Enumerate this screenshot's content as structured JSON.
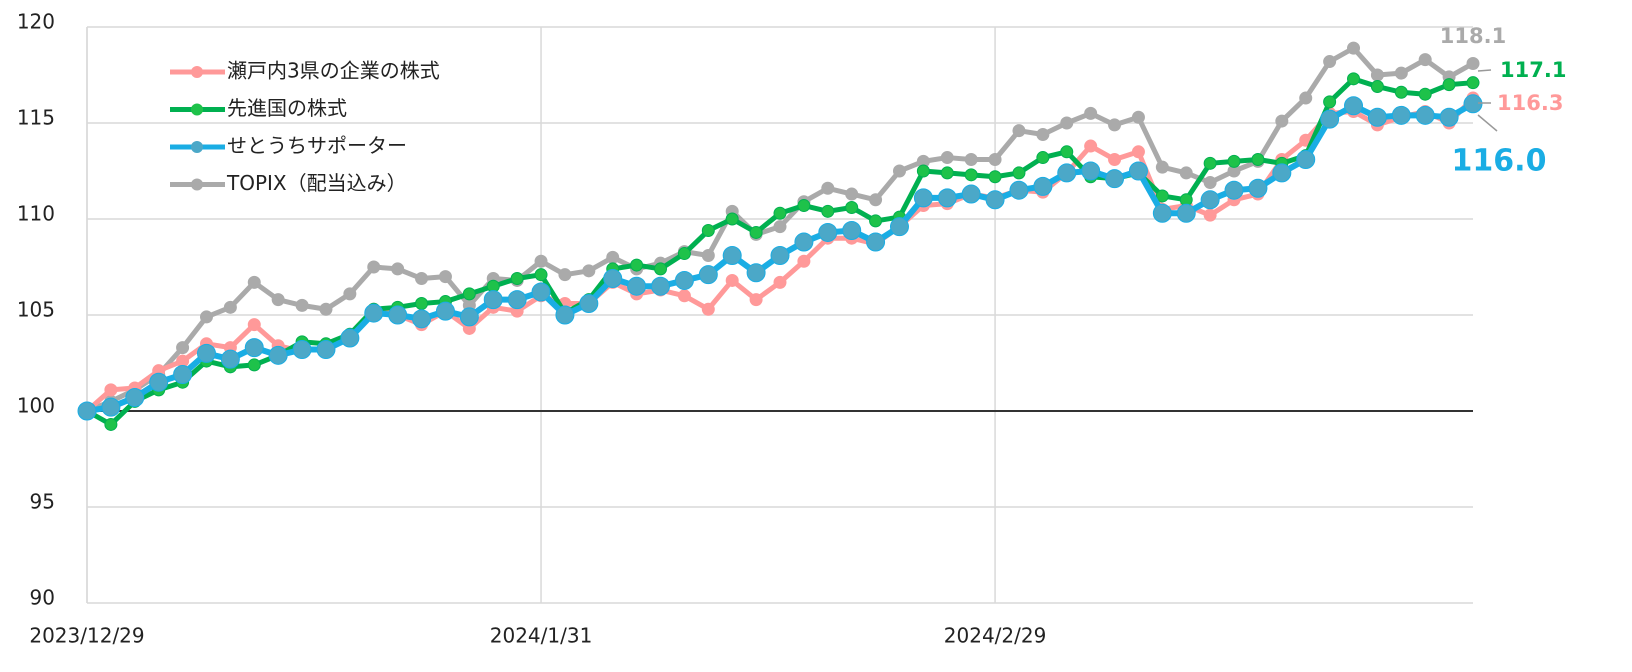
{
  "chart_data": {
    "type": "line",
    "categories": [
      "2023/12/29",
      null,
      null,
      null,
      null,
      null,
      null,
      null,
      null,
      null,
      null,
      null,
      null,
      null,
      null,
      null,
      null,
      null,
      null,
      "2024/1/31",
      null,
      null,
      null,
      null,
      null,
      null,
      null,
      null,
      null,
      null,
      null,
      null,
      null,
      null,
      null,
      null,
      null,
      null,
      "2024/2/29",
      null,
      null,
      null,
      null,
      null,
      null,
      null,
      null,
      null,
      null,
      null,
      null,
      null,
      null,
      null,
      null,
      null,
      null,
      null,
      null
    ],
    "ylim": [
      90,
      120
    ],
    "yticks": [
      90,
      95,
      100,
      105,
      110,
      115,
      120
    ],
    "baseline": 100,
    "grid": true,
    "legend": "upper left",
    "series": [
      {
        "name": "瀬戸内3県の企業の株式",
        "color": "#ff9999",
        "marker_color": "#ff9999",
        "end_label": "116.3",
        "values": [
          100,
          101.1,
          101.2,
          102.1,
          102.6,
          103.5,
          103.3,
          104.5,
          103.4,
          103.1,
          103.3,
          103.8,
          105.3,
          105.0,
          104.5,
          105.2,
          104.3,
          105.4,
          105.2,
          106.0,
          105.6,
          105.6,
          106.7,
          106.1,
          106.3,
          106.0,
          105.3,
          106.8,
          105.8,
          106.7,
          107.8,
          109.0,
          109.0,
          108.7,
          109.6,
          110.7,
          110.8,
          111.3,
          111.1,
          111.5,
          111.4,
          112.4,
          113.8,
          113.1,
          113.5,
          110.5,
          110.7,
          110.2,
          111.0,
          111.3,
          113.1,
          114.1,
          115.5,
          115.6,
          114.9,
          115.3,
          115.6,
          115.0,
          116.3
        ]
      },
      {
        "name": "先進国の株式",
        "color": "#00b050",
        "marker_color": "#1ec24a",
        "end_label": "117.1",
        "values": [
          100,
          99.3,
          100.5,
          101.1,
          101.5,
          102.6,
          102.3,
          102.4,
          102.9,
          103.6,
          103.5,
          104.0,
          105.3,
          105.4,
          105.6,
          105.7,
          106.1,
          106.5,
          106.9,
          107.1,
          105.1,
          105.8,
          107.4,
          107.6,
          107.4,
          108.2,
          109.4,
          110.0,
          109.3,
          110.3,
          110.7,
          110.4,
          110.6,
          109.9,
          110.1,
          112.5,
          112.4,
          112.3,
          112.2,
          112.4,
          113.2,
          113.5,
          112.2,
          112.1,
          112.4,
          111.2,
          111.0,
          112.9,
          113.0,
          113.1,
          112.9,
          113.3,
          116.1,
          117.3,
          116.9,
          116.6,
          116.5,
          117.0,
          117.1
        ]
      },
      {
        "name": "せとうちサポーター",
        "color": "#1aade4",
        "marker_color": "#4ba8c8",
        "end_label": "116.0",
        "values": [
          100,
          100.2,
          100.7,
          101.5,
          101.9,
          103.0,
          102.7,
          103.3,
          102.9,
          103.2,
          103.2,
          103.8,
          105.1,
          105.0,
          104.8,
          105.2,
          104.9,
          105.8,
          105.8,
          106.2,
          105.0,
          105.6,
          106.9,
          106.5,
          106.5,
          106.8,
          107.1,
          108.1,
          107.2,
          108.1,
          108.8,
          109.3,
          109.4,
          108.8,
          109.6,
          111.1,
          111.1,
          111.3,
          111.0,
          111.5,
          111.7,
          112.4,
          112.5,
          112.1,
          112.5,
          110.3,
          110.3,
          111.0,
          111.5,
          111.6,
          112.4,
          113.1,
          115.2,
          115.9,
          115.3,
          115.4,
          115.4,
          115.3,
          116.0
        ]
      },
      {
        "name": "TOPIX（配当込み）",
        "color": "#aaaaaa",
        "marker_color": "#aaaaaa",
        "end_label": "118.1",
        "values": [
          100,
          100.5,
          101.1,
          101.9,
          103.3,
          104.9,
          105.4,
          106.7,
          105.8,
          105.5,
          105.3,
          106.1,
          107.5,
          107.4,
          106.9,
          107.0,
          105.5,
          106.9,
          106.8,
          107.8,
          107.1,
          107.3,
          108.0,
          107.4,
          107.7,
          108.3,
          108.1,
          110.4,
          109.2,
          109.6,
          110.9,
          111.6,
          111.3,
          111.0,
          112.5,
          113.0,
          113.2,
          113.1,
          113.1,
          114.6,
          114.4,
          115.0,
          115.5,
          114.9,
          115.3,
          112.7,
          112.4,
          111.9,
          112.5,
          113.0,
          115.1,
          116.3,
          118.2,
          118.9,
          117.5,
          117.6,
          118.3,
          117.4,
          118.1
        ]
      }
    ]
  }
}
